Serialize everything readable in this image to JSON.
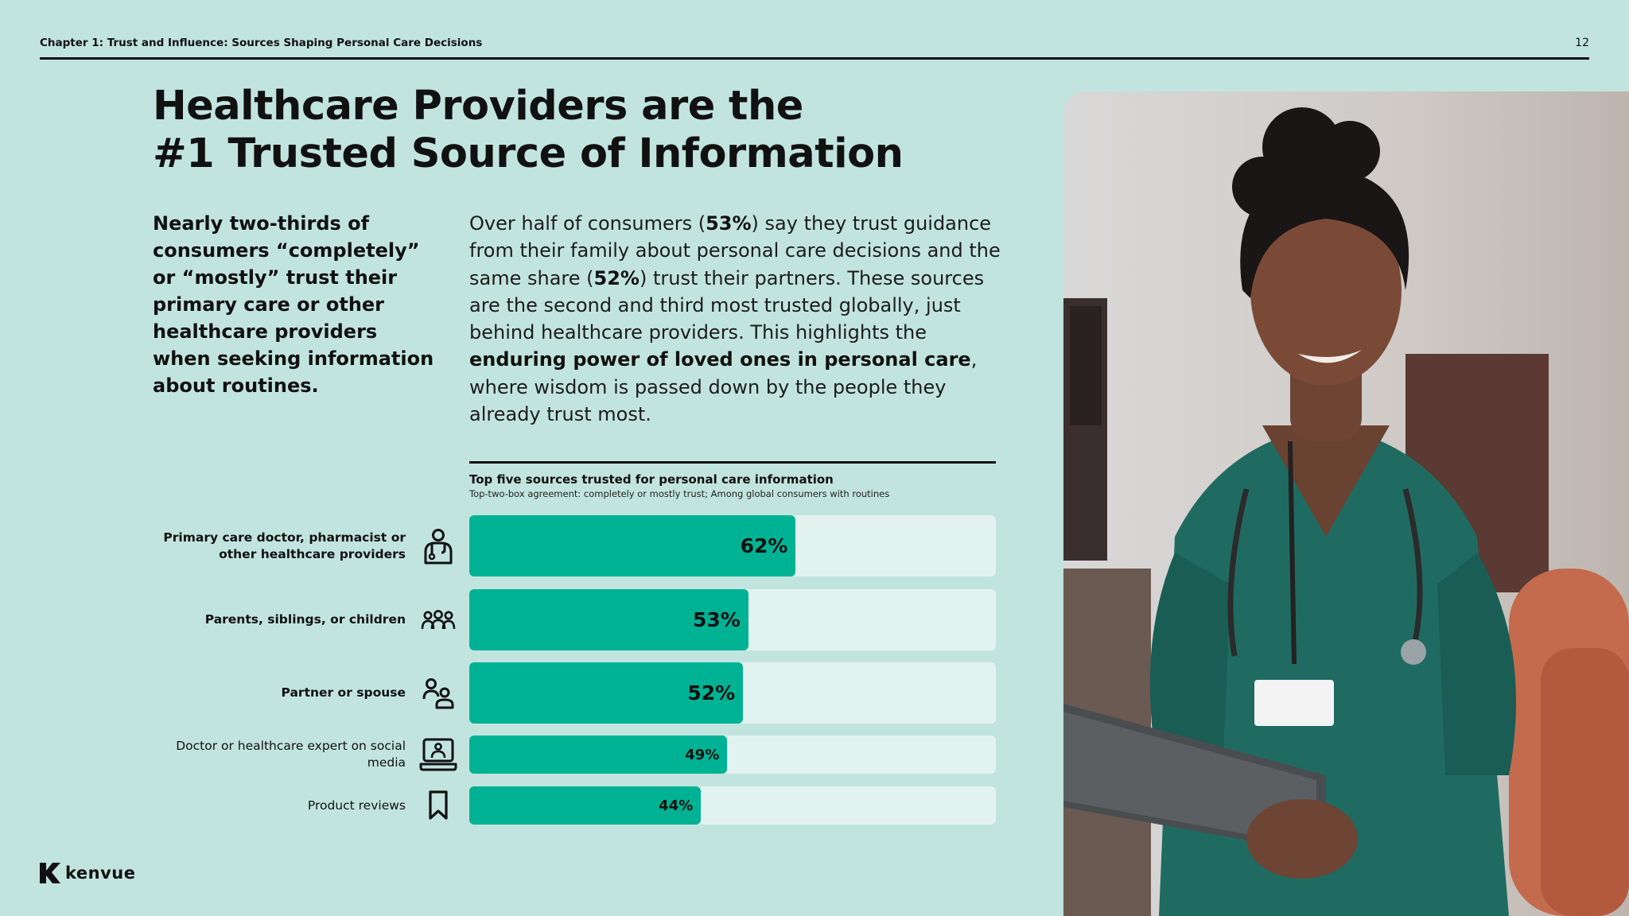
{
  "header": {
    "chapter": "Chapter 1: Trust and Influence: Sources Shaping Personal Care Decisions",
    "page_number": "12"
  },
  "title": {
    "line1": "Healthcare Providers are the",
    "line2": "#1 Trusted Source of Information"
  },
  "lead": "Nearly two-thirds of consumers “completely” or “mostly” trust their primary care or other healthcare providers when seeking information about routines.",
  "body": {
    "p1": "Over half of consumers (",
    "b1": "53%",
    "p2": ") say they trust guidance from their family about personal care decisions and the same share (",
    "b2": "52%",
    "p3": ") trust their partners. These sources are the second and third most trusted globally, just behind healthcare providers. This highlights the ",
    "b3": "enduring power of loved ones in personal care",
    "p4": ", where wisdom is passed down by the people they already trust most."
  },
  "logo": {
    "text": "kenvue"
  },
  "colors": {
    "background": "#c2e4df",
    "bar_fill": "#00b294",
    "bar_track": "#e2f3ef",
    "text": "#111111"
  },
  "chart_data": {
    "type": "bar",
    "orientation": "horizontal",
    "title": "Top five sources trusted for personal care information",
    "subtitle": "Top-two-box agreement: completely or mostly trust; Among global consumers with routines",
    "xlim": [
      0,
      100
    ],
    "categories": [
      "Primary care doctor, pharmacist or other healthcare providers",
      "Parents, siblings, or children",
      "Partner or spouse",
      "Doctor or healthcare expert on social media",
      "Product reviews"
    ],
    "values": [
      62,
      53,
      52,
      49,
      44
    ],
    "value_labels": [
      "62%",
      "53%",
      "52%",
      "49%",
      "44%"
    ],
    "icons": [
      "doctor-icon",
      "family-group-icon",
      "partner-couple-icon",
      "laptop-doctor-icon",
      "bookmark-icon"
    ]
  }
}
